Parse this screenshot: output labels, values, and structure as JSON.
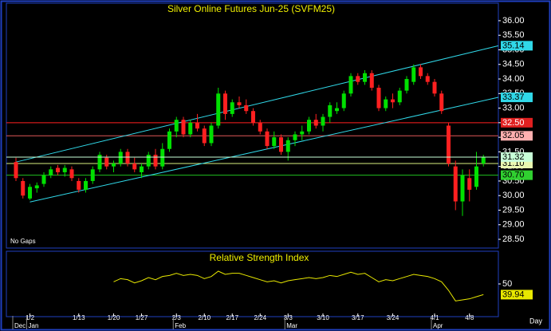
{
  "chart_data": {
    "type": "candlestick",
    "title": "Silver Online Futures Jun-25 (SVFM25)",
    "annotation": "No Gaps",
    "x_unit": "Day",
    "colors": {
      "up": "#00e000",
      "down": "#ff2020"
    },
    "candles": {
      "open": [
        31.15,
        30.5,
        29.9,
        30.25,
        30.4,
        30.7,
        30.95,
        30.8,
        30.9,
        30.5,
        30.2,
        30.5,
        30.9,
        31.3,
        31.0,
        31.1,
        31.5,
        31.1,
        30.8,
        31.0,
        31.4,
        31.0,
        31.6,
        32.2,
        32.6,
        32.1,
        32.5,
        32.3,
        31.8,
        32.4,
        33.5,
        32.8,
        33.2,
        33.1,
        32.9,
        32.5,
        32.2,
        31.7,
        32.0,
        31.5,
        31.9,
        32.1,
        32.2,
        32.6,
        32.4,
        32.7,
        32.9,
        33.0,
        33.5,
        34.1,
        33.9,
        34.2,
        33.7,
        33.0,
        33.3,
        33.2,
        33.6,
        33.9,
        34.4,
        34.1,
        33.9,
        33.5,
        32.4,
        31.0,
        29.8,
        30.6,
        30.3,
        31.1
      ],
      "high": [
        31.3,
        30.6,
        30.4,
        30.45,
        30.8,
        31.0,
        31.05,
        31.05,
        31.0,
        30.6,
        30.6,
        31.0,
        31.5,
        31.4,
        31.2,
        31.6,
        31.6,
        31.3,
        31.1,
        31.5,
        31.6,
        31.8,
        32.3,
        32.7,
        32.7,
        32.6,
        32.8,
        32.4,
        32.5,
        33.7,
        33.6,
        33.3,
        33.4,
        33.3,
        33.0,
        32.6,
        32.3,
        32.2,
        32.1,
        32.0,
        32.2,
        32.4,
        32.7,
        32.8,
        32.8,
        33.2,
        33.2,
        33.6,
        34.2,
        34.2,
        34.3,
        34.3,
        33.8,
        33.4,
        33.5,
        33.7,
        34.1,
        34.5,
        34.5,
        34.2,
        34.0,
        33.6,
        32.5,
        31.2,
        30.9,
        30.9,
        31.5,
        31.4
      ],
      "low": [
        30.5,
        29.9,
        29.85,
        30.1,
        30.3,
        30.6,
        30.7,
        30.65,
        30.5,
        30.1,
        30.1,
        30.4,
        30.8,
        30.9,
        30.8,
        31.0,
        31.0,
        30.8,
        30.6,
        30.9,
        30.9,
        30.9,
        31.5,
        32.0,
        32.0,
        32.0,
        32.2,
        31.7,
        31.7,
        32.3,
        32.6,
        32.7,
        33.0,
        32.8,
        32.4,
        32.1,
        31.6,
        31.6,
        31.4,
        31.2,
        31.7,
        31.9,
        32.1,
        32.3,
        32.2,
        32.5,
        32.8,
        32.9,
        33.4,
        33.8,
        33.8,
        33.6,
        32.9,
        32.9,
        33.0,
        33.1,
        33.5,
        33.8,
        34.0,
        33.8,
        33.4,
        32.8,
        31.0,
        29.5,
        29.3,
        29.8,
        30.2,
        31.0
      ],
      "close": [
        30.6,
        30.0,
        30.3,
        30.35,
        30.7,
        30.9,
        30.8,
        30.95,
        30.6,
        30.2,
        30.5,
        30.9,
        31.4,
        31.0,
        31.1,
        31.5,
        31.1,
        30.9,
        31.0,
        31.4,
        31.0,
        31.6,
        32.2,
        32.6,
        32.1,
        32.5,
        32.3,
        31.8,
        32.4,
        33.5,
        32.8,
        33.2,
        33.1,
        32.9,
        32.5,
        32.2,
        31.7,
        32.0,
        31.5,
        31.9,
        32.1,
        32.2,
        32.6,
        32.4,
        32.7,
        33.1,
        33.0,
        33.5,
        34.1,
        33.9,
        34.2,
        33.7,
        33.0,
        33.3,
        33.2,
        33.6,
        34.0,
        34.4,
        34.1,
        33.9,
        33.5,
        32.9,
        31.1,
        29.8,
        30.7,
        30.2,
        31.0,
        31.32
      ]
    },
    "ylim": [
      28.2,
      36.6
    ],
    "yticks": [
      {
        "value": 28.5,
        "label": "28.50"
      },
      {
        "value": 29,
        "label": "29.00"
      },
      {
        "value": 29.5,
        "label": "29.50"
      },
      {
        "value": 30,
        "label": "30.00"
      },
      {
        "value": 30.5,
        "label": "30.50"
      },
      {
        "value": 31,
        "label": "31.00"
      },
      {
        "value": 31.5,
        "label": "31.50"
      },
      {
        "value": 32,
        "label": "32.00"
      },
      {
        "value": 32.5,
        "label": "32.50"
      },
      {
        "value": 33,
        "label": "33.00"
      },
      {
        "value": 33.5,
        "label": "33.50"
      },
      {
        "value": 34,
        "label": "34.00"
      },
      {
        "value": 34.5,
        "label": "34.50"
      },
      {
        "value": 35,
        "label": "35.00"
      },
      {
        "value": 35.5,
        "label": "35.50"
      },
      {
        "value": 36,
        "label": "36.00"
      }
    ],
    "xticks": [
      {
        "value": 2,
        "label": "1/2"
      },
      {
        "value": 9,
        "label": "1/13"
      },
      {
        "value": 14,
        "label": "1/20"
      },
      {
        "value": 18,
        "label": "1/27"
      },
      {
        "value": 23,
        "label": "2/3"
      },
      {
        "value": 27,
        "label": "2/10"
      },
      {
        "value": 31,
        "label": "2/17"
      },
      {
        "value": 35,
        "label": "2/24"
      },
      {
        "value": 39,
        "label": "3/3"
      },
      {
        "value": 44,
        "label": "3/10"
      },
      {
        "value": 49,
        "label": "3/17"
      },
      {
        "value": 54,
        "label": "3/24"
      },
      {
        "value": 60,
        "label": "4/1"
      },
      {
        "value": 65,
        "label": "4/8"
      }
    ],
    "month_ticks": [
      {
        "value": 0,
        "label": "Dec"
      },
      {
        "value": 2,
        "label": "Jan"
      },
      {
        "value": 23,
        "label": "Feb"
      },
      {
        "value": 39,
        "label": "Mar"
      },
      {
        "value": 60,
        "label": "Apr"
      }
    ],
    "trend_lines": [
      {
        "color": "#30d8e8",
        "start_index": 0,
        "start_value": 31.15,
        "end_value": 35.14
      },
      {
        "color": "#30d8e8",
        "start_index": 2,
        "start_value": 29.78,
        "end_value": 33.37
      }
    ],
    "levels": [
      {
        "value": 32.5,
        "label": "32.50",
        "color": "#ff2020",
        "label_bg": "#e02020",
        "label_color": "#ffffff"
      },
      {
        "value": 32.05,
        "color": "#e05858",
        "label_bg": "#ffb0b0",
        "label_color": "#000000"
      },
      {
        "value": 31.1,
        "label": "31.10",
        "color": "#d8f080",
        "label_bg": "#e8f8b0",
        "label_color": "#000000"
      },
      {
        "value": 30.7,
        "label": "30.70",
        "color": "#20c020",
        "label_bg": "#30d030",
        "label_color": "#000000"
      }
    ],
    "last_price_color": "#c8ffd8",
    "rsi": {
      "title": "Relative Strength Index",
      "color": "#e8e800",
      "ylim": [
        20,
        80
      ],
      "yticks": [
        50
      ],
      "values": [
        null,
        null,
        null,
        null,
        null,
        null,
        null,
        null,
        null,
        null,
        null,
        null,
        null,
        null,
        52,
        55,
        54,
        51,
        53,
        56,
        54,
        57,
        58,
        60,
        58,
        59,
        58,
        55,
        57,
        62,
        59,
        60,
        60,
        58,
        56,
        54,
        52,
        53,
        51,
        53,
        54,
        55,
        56,
        55,
        56,
        58,
        57,
        59,
        61,
        59,
        60,
        56,
        52,
        54,
        53,
        55,
        57,
        59,
        58,
        57,
        55,
        52,
        44,
        34,
        35,
        36,
        38,
        39.94
      ]
    }
  }
}
